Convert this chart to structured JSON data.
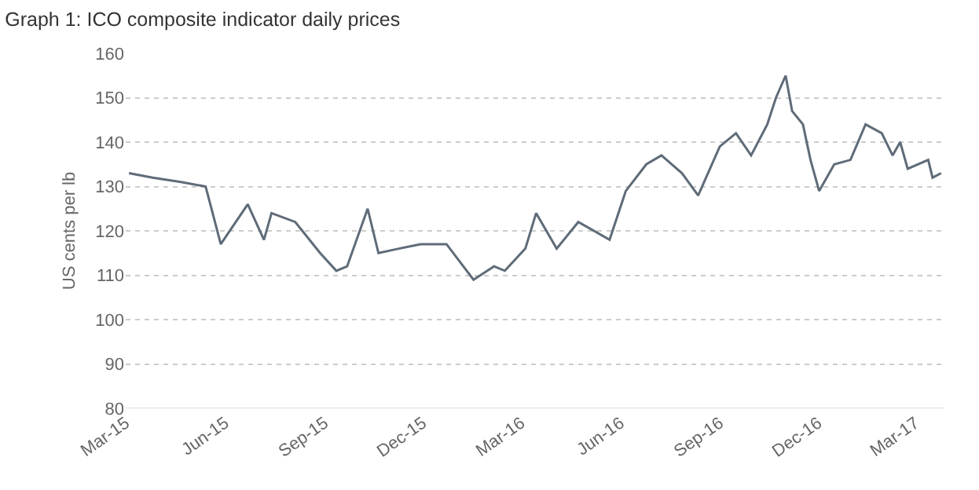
{
  "chart_data": {
    "type": "line",
    "title": "Graph 1: ICO composite indicator daily prices",
    "ylabel": "US cents per lb",
    "x": [
      "2015-03-04",
      "2015-03-26",
      "2015-04-21",
      "2015-05-14",
      "2015-05-28",
      "2015-06-22",
      "2015-07-07",
      "2015-07-14",
      "2015-08-05",
      "2015-08-28",
      "2015-09-12",
      "2015-09-22",
      "2015-10-11",
      "2015-10-21",
      "2015-11-09",
      "2015-11-29",
      "2015-12-23",
      "2016-01-17",
      "2016-02-05",
      "2016-02-15",
      "2016-03-05",
      "2016-03-15",
      "2016-04-03",
      "2016-04-23",
      "2016-05-22",
      "2016-06-06",
      "2016-06-25",
      "2016-07-09",
      "2016-07-28",
      "2016-08-12",
      "2016-09-01",
      "2016-09-16",
      "2016-09-30",
      "2016-10-15",
      "2016-10-23",
      "2016-11-01",
      "2016-11-07",
      "2016-11-17",
      "2016-11-24",
      "2016-12-02",
      "2016-12-16",
      "2016-12-31",
      "2017-01-14",
      "2017-01-29",
      "2017-02-08",
      "2017-02-15",
      "2017-02-22",
      "2017-03-13",
      "2017-03-17",
      "2017-03-25"
    ],
    "series": [
      {
        "color": "#5f6b78",
        "values": [
          133,
          132,
          131,
          130,
          117,
          126,
          118,
          124,
          122,
          115,
          111,
          112,
          125,
          115,
          116,
          117,
          117,
          109,
          112,
          111,
          116,
          124,
          116,
          122,
          118,
          129,
          135,
          137,
          133,
          128,
          139,
          142,
          137,
          144,
          150,
          155,
          147,
          144,
          136,
          129,
          135,
          136,
          144,
          142,
          137,
          140,
          134,
          136,
          132,
          133
        ]
      }
    ],
    "xlim": [
      "2015-03-01",
      "2017-03-28"
    ],
    "xticks": [
      {
        "value": "2015-03-01",
        "label": "Mar-15"
      },
      {
        "value": "2015-06-01",
        "label": "Jun-15"
      },
      {
        "value": "2015-09-01",
        "label": "Sep-15"
      },
      {
        "value": "2015-12-01",
        "label": "Dec-15"
      },
      {
        "value": "2016-03-01",
        "label": "Mar-16"
      },
      {
        "value": "2016-06-01",
        "label": "Jun-16"
      },
      {
        "value": "2016-09-01",
        "label": "Sep-16"
      },
      {
        "value": "2016-12-01",
        "label": "Dec-16"
      },
      {
        "value": "2017-03-01",
        "label": "Mar-17"
      }
    ],
    "ylim": [
      80,
      160
    ],
    "yticks": [
      80,
      90,
      100,
      110,
      120,
      130,
      140,
      150,
      160
    ],
    "grid": "y",
    "marker": "none",
    "line_style": "solid"
  }
}
